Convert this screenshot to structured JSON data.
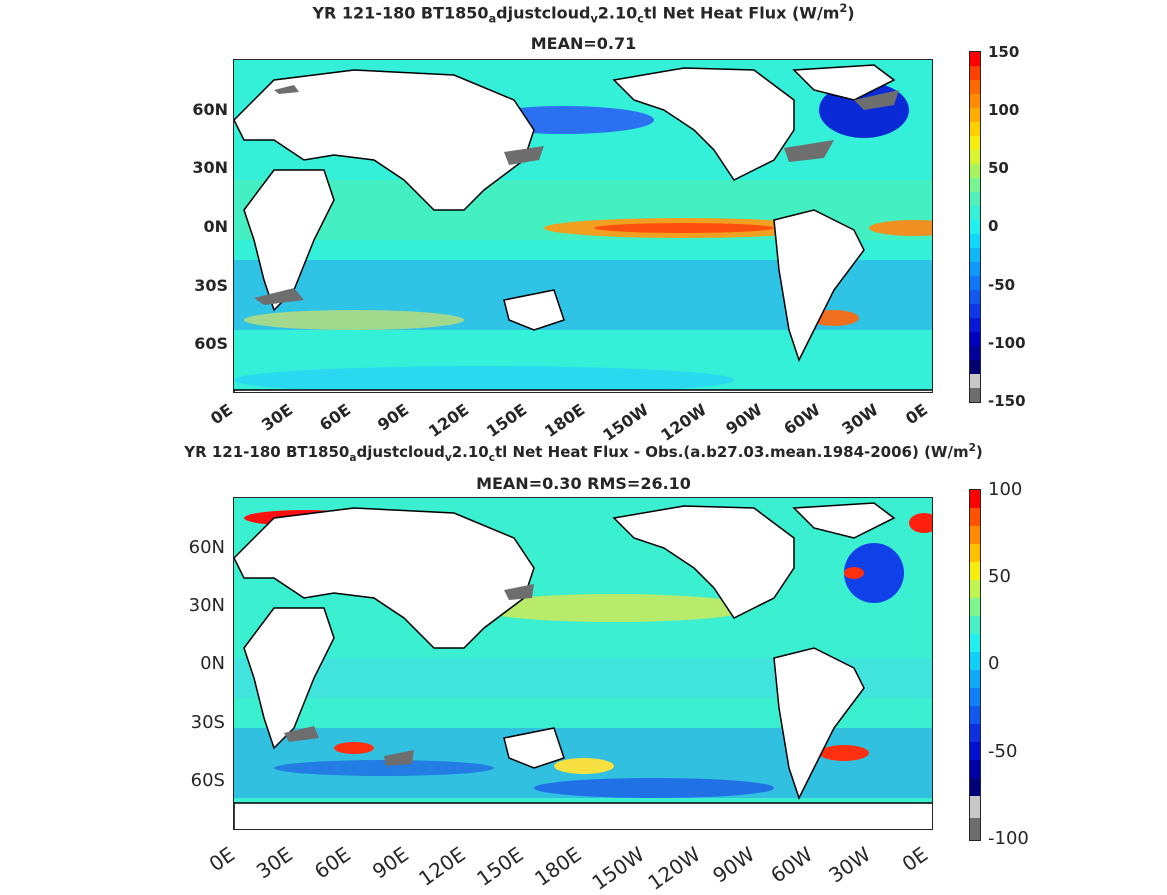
{
  "top": {
    "title_pre": "YR 121-180 BT1850",
    "title_sub1": "a",
    "title_mid1": "djustcloud",
    "title_sub2": "v",
    "title_mid2": "2.10",
    "title_sub3": "c",
    "title_post": "tl  Net Heat Flux (W/m",
    "title_sup": "2",
    "title_end": ")",
    "mean": "MEAN=0.71",
    "yticks": [
      "60N",
      "30N",
      "0N",
      "30S",
      "60S"
    ],
    "xticks": [
      "0E",
      "30E",
      "60E",
      "90E",
      "120E",
      "150E",
      "180E",
      "150W",
      "120W",
      "90W",
      "60W",
      "30W",
      "0E"
    ],
    "colorbar_labels": [
      "150",
      "100",
      "50",
      "0",
      "-50",
      "-100",
      "-150"
    ]
  },
  "bottom": {
    "title_pre": "YR 121-180 BT1850",
    "title_sub1": "a",
    "title_mid1": "djustcloud",
    "title_sub2": "v",
    "title_mid2": "2.10",
    "title_sub3": "c",
    "title_post": "tl  Net Heat Flux - Obs.(a.b27.03.mean.1984-2006) (W/m",
    "title_sup": "2",
    "title_end": ")",
    "stats": "MEAN=0.30 RMS=26.10",
    "yticks": [
      "60N",
      "30N",
      "0N",
      "30S",
      "60S"
    ],
    "xticks": [
      "0E",
      "30E",
      "60E",
      "90E",
      "120E",
      "150E",
      "180E",
      "150W",
      "120W",
      "90W",
      "60W",
      "30W",
      "0E"
    ],
    "colorbar_labels": [
      "100",
      "50",
      "0",
      "-50",
      "-100"
    ]
  },
  "colors": {
    "ocean_base": "#2ff0e8",
    "land": "#ffffff",
    "coast": "#000000",
    "ice": "#6e6e6e"
  }
}
